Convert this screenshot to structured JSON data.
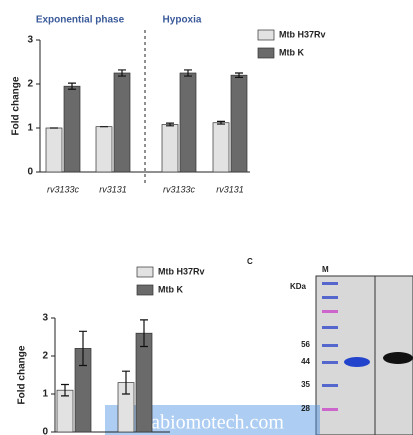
{
  "chart_data": [
    {
      "type": "bar",
      "y_label": "Fold change",
      "annotations": [
        "Exponential phase",
        "Hypoxia"
      ],
      "categories": [
        "rv3133c",
        "rv3131",
        "rv3133c",
        "rv3131"
      ],
      "series": [
        {
          "name": "Mtb H37Rv",
          "color": "#e2e2e2",
          "values": [
            1,
            1.03,
            1.08,
            1.12
          ],
          "errors": [
            0,
            0,
            0.03,
            0.03
          ]
        },
        {
          "name": "Mtb K",
          "color": "#6a6a6a",
          "values": [
            1.95,
            2.25,
            2.25,
            2.2
          ],
          "errors": [
            0.07,
            0.07,
            0.07,
            0.05
          ]
        }
      ],
      "ylim": [
        0,
        3
      ],
      "yticks": [
        0,
        1,
        2,
        3
      ]
    },
    {
      "type": "bar",
      "y_label": "Fold change",
      "categories": [
        null,
        null
      ],
      "series": [
        {
          "name": "Mtb H37Rv",
          "color": "#e2e2e2",
          "values": [
            1.1,
            1.3
          ],
          "errors": [
            0.15,
            0.3
          ]
        },
        {
          "name": "Mtb K",
          "color": "#6a6a6a",
          "values": [
            2.2,
            2.6
          ],
          "errors": [
            0.45,
            0.35
          ]
        }
      ],
      "ylim": [
        0,
        3
      ],
      "yticks": [
        0,
        1,
        2,
        3
      ]
    }
  ],
  "gel": {
    "panel": "C",
    "lane": "M",
    "unit": "KDa",
    "markers": [
      56,
      44,
      35,
      28
    ]
  },
  "watermark": "Sabiomotech.com"
}
